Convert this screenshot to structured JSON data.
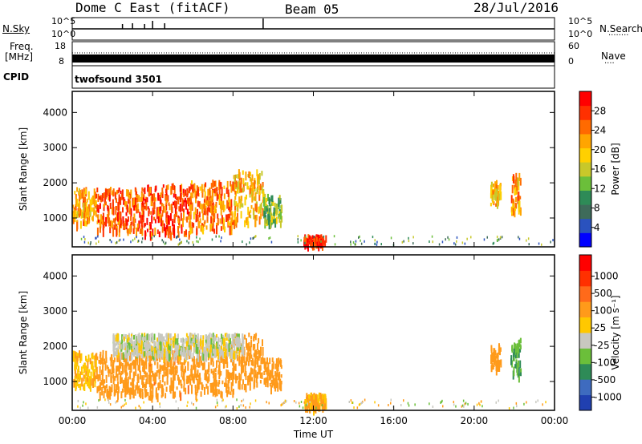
{
  "header": {
    "station": "Dome C East (fitACF)",
    "beam": "Beam 05",
    "date": "28/Jul/2016"
  },
  "strips": {
    "nsky_label": "N.Sky",
    "nsearch_label": "N.Search",
    "nsearch_dots": "········",
    "noise_ticks": [
      "10^5",
      "10^0"
    ],
    "freq_label": "Freq.",
    "freq_unit": "[MHz]",
    "freq_ticks": [
      "18",
      "8"
    ],
    "nave_label": "Nave",
    "nave_dots": "····",
    "nave_ticks": [
      "60",
      "0"
    ],
    "cpid_label": "CPID",
    "cpid_value": "twofsound 3501"
  },
  "chart_data": [
    {
      "type": "heatmap",
      "title": "",
      "xlabel": "",
      "ylabel": "Slant Range [km]",
      "xlim": [
        0,
        24
      ],
      "ylim": [
        180,
        4600
      ],
      "x_ticks": [
        "00:00",
        "04:00",
        "08:00",
        "12:00",
        "16:00",
        "20:00",
        "00:00"
      ],
      "y_ticks": [
        1000,
        2000,
        3000,
        4000
      ],
      "colorbar": {
        "label": "Power [dB]",
        "range": [
          0,
          32
        ],
        "ticks": [
          "4",
          "8",
          "12",
          "16",
          "20",
          "24",
          "28"
        ],
        "colors": [
          "#0000ff",
          "#2a52be",
          "#3e6b5a",
          "#2e8b57",
          "#6bbf3a",
          "#c8c82a",
          "#ffd000",
          "#ffa500",
          "#ff6a00",
          "#ff3000",
          "#ff0000"
        ]
      },
      "regions": [
        {
          "t": [
            0.0,
            1.2
          ],
          "r": [
            800,
            1800
          ],
          "level": 22
        },
        {
          "t": [
            1.2,
            3.5
          ],
          "r": [
            600,
            1800
          ],
          "level": 26
        },
        {
          "t": [
            3.5,
            5.8
          ],
          "r": [
            500,
            1900
          ],
          "level": 27
        },
        {
          "t": [
            5.8,
            8.0
          ],
          "r": [
            600,
            2000
          ],
          "level": 24
        },
        {
          "t": [
            8.0,
            9.5
          ],
          "r": [
            800,
            2300
          ],
          "level": 20
        },
        {
          "t": [
            9.5,
            10.4
          ],
          "r": [
            800,
            1600
          ],
          "level": 14
        },
        {
          "t": [
            11.5,
            12.6
          ],
          "r": [
            200,
            450
          ],
          "level": 29
        },
        {
          "t": [
            20.8,
            21.3
          ],
          "r": [
            1300,
            2000
          ],
          "level": 20
        },
        {
          "t": [
            21.8,
            22.3
          ],
          "r": [
            1100,
            2200
          ],
          "level": 22
        }
      ]
    },
    {
      "type": "heatmap",
      "title": "",
      "xlabel": "Time UT",
      "ylabel": "Slant Range [km]",
      "xlim": [
        0,
        24
      ],
      "ylim": [
        180,
        4600
      ],
      "x_ticks": [
        "00:00",
        "04:00",
        "08:00",
        "12:00",
        "16:00",
        "20:00",
        "00:00"
      ],
      "y_ticks": [
        1000,
        2000,
        3000,
        4000
      ],
      "colorbar": {
        "label": "Velocity [m s⁻¹]",
        "ticks": [
          "1000",
          "500",
          "100",
          "25",
          "-25",
          "-100",
          "-500",
          "-1000"
        ],
        "colors": [
          "#2040b0",
          "#3e6bbf",
          "#2e8b57",
          "#6bbf3a",
          "#c8c8c0",
          "#ffc800",
          "#ff9a1a",
          "#ff6a1a",
          "#ff3000",
          "#ff0000"
        ]
      },
      "regions": [
        {
          "t": [
            0.0,
            1.2
          ],
          "r": [
            800,
            1800
          ],
          "level": -80
        },
        {
          "t": [
            1.2,
            3.5
          ],
          "r": [
            600,
            1800
          ],
          "level": -300
        },
        {
          "t": [
            3.5,
            5.8
          ],
          "r": [
            500,
            1900
          ],
          "level": -350
        },
        {
          "t": [
            5.8,
            8.0
          ],
          "r": [
            600,
            2000
          ],
          "level": -300
        },
        {
          "t": [
            8.0,
            9.5
          ],
          "r": [
            800,
            2300
          ],
          "level": -250
        },
        {
          "t": [
            9.5,
            10.4
          ],
          "r": [
            800,
            1600
          ],
          "level": -200
        },
        {
          "t": [
            2.0,
            8.5
          ],
          "r": [
            1700,
            2300
          ],
          "level": 0
        },
        {
          "t": [
            11.5,
            12.6
          ],
          "r": [
            200,
            600
          ],
          "level": -120
        },
        {
          "t": [
            20.8,
            21.3
          ],
          "r": [
            1300,
            2000
          ],
          "level": -300
        },
        {
          "t": [
            21.8,
            22.3
          ],
          "r": [
            1100,
            2200
          ],
          "level": 100
        }
      ]
    }
  ]
}
